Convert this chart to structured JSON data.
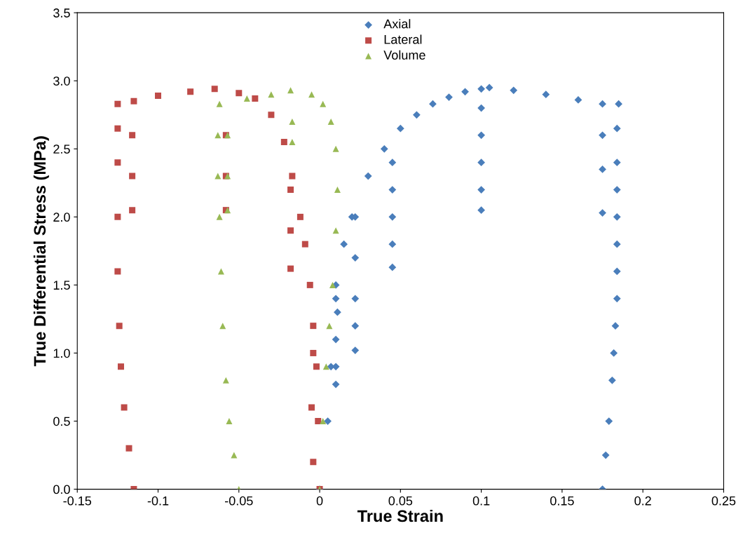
{
  "chart_data": {
    "type": "scatter",
    "xlabel": "True Strain",
    "ylabel": "True Differential Stress (MPa)",
    "xlim": [
      -0.15,
      0.25
    ],
    "ylim": [
      0,
      3.5
    ],
    "xticks": [
      -0.15,
      -0.1,
      -0.05,
      0,
      0.05,
      0.1,
      0.15,
      0.2,
      0.25
    ],
    "yticks": [
      {
        "value": 0,
        "label": "0.0"
      },
      {
        "value": 0.5,
        "label": "0.5"
      },
      {
        "value": 1,
        "label": "1.0"
      },
      {
        "value": 1.5,
        "label": "1.5"
      },
      {
        "value": 2,
        "label": "2.0"
      },
      {
        "value": 2.5,
        "label": "2.5"
      },
      {
        "value": 3,
        "label": "3.0"
      },
      {
        "value": 3.5,
        "label": "3.5"
      }
    ],
    "grid": false,
    "legend": "top",
    "series": [
      {
        "name": "Axial",
        "color": "#4a7ebb",
        "marker": "diamond",
        "x": [
          0,
          0.005,
          0.007,
          0.011,
          0.01,
          0.015,
          0.02,
          0.03,
          0.04,
          0.05,
          0.06,
          0.07,
          0.08,
          0.09,
          0.1,
          0.105,
          0.12,
          0.14,
          0.16,
          0.175,
          0.185,
          0.01,
          0.01,
          0.01,
          0.01,
          0.022,
          0.022,
          0.022,
          0.022,
          0.022,
          0.045,
          0.045,
          0.045,
          0.045,
          0.045,
          0.1,
          0.1,
          0.1,
          0.1,
          0.1,
          0.175,
          0.175,
          0.175,
          0.184,
          0.184,
          0.184,
          0.184,
          0.184,
          0.184,
          0.184,
          0.183,
          0.182,
          0.181,
          0.179,
          0.177,
          0.175
        ],
        "values": [
          0,
          0.5,
          0.9,
          1.3,
          1.5,
          1.8,
          2.0,
          2.3,
          2.5,
          2.65,
          2.75,
          2.83,
          2.88,
          2.92,
          2.94,
          2.95,
          2.93,
          2.9,
          2.86,
          2.83,
          2.83,
          1.4,
          1.1,
          0.9,
          0.77,
          2.0,
          1.7,
          1.4,
          1.2,
          1.02,
          2.4,
          2.2,
          2.0,
          1.8,
          1.63,
          2.8,
          2.6,
          2.4,
          2.2,
          2.05,
          2.6,
          2.35,
          2.03,
          2.65,
          2.4,
          2.2,
          2.0,
          1.8,
          1.6,
          1.4,
          1.2,
          1.0,
          0.8,
          0.5,
          0.25,
          0
        ]
      },
      {
        "name": "Lateral",
        "color": "#be4b48",
        "marker": "square",
        "x": [
          0,
          -0.001,
          -0.002,
          -0.004,
          -0.006,
          -0.009,
          -0.012,
          -0.017,
          -0.022,
          -0.03,
          -0.04,
          -0.05,
          -0.065,
          -0.08,
          -0.1,
          -0.115,
          -0.125,
          -0.004,
          -0.005,
          -0.004,
          -0.018,
          -0.018,
          -0.018,
          -0.058,
          -0.058,
          -0.058,
          -0.116,
          -0.116,
          -0.116,
          -0.125,
          -0.125,
          -0.125,
          -0.125,
          -0.124,
          -0.123,
          -0.121,
          -0.118,
          -0.115
        ],
        "values": [
          0,
          0.5,
          0.9,
          1.2,
          1.5,
          1.8,
          2.0,
          2.3,
          2.55,
          2.75,
          2.87,
          2.91,
          2.94,
          2.92,
          2.89,
          2.85,
          2.83,
          1.0,
          0.6,
          0.2,
          2.2,
          1.9,
          1.62,
          2.6,
          2.3,
          2.05,
          2.6,
          2.3,
          2.05,
          2.65,
          2.4,
          2.0,
          1.6,
          1.2,
          0.9,
          0.6,
          0.3,
          0
        ]
      },
      {
        "name": "Volume",
        "color": "#98b954",
        "marker": "triangle",
        "x": [
          0,
          0.002,
          0.004,
          0.006,
          0.008,
          0.01,
          0.011,
          0.01,
          0.007,
          0.002,
          -0.005,
          -0.018,
          -0.03,
          -0.045,
          -0.062,
          -0.017,
          -0.017,
          -0.057,
          -0.057,
          -0.057,
          -0.063,
          -0.063,
          -0.062,
          -0.061,
          -0.06,
          -0.058,
          -0.056,
          -0.053,
          -0.05
        ],
        "values": [
          0,
          0.5,
          0.9,
          1.2,
          1.5,
          1.9,
          2.2,
          2.5,
          2.7,
          2.83,
          2.9,
          2.93,
          2.9,
          2.87,
          2.83,
          2.7,
          2.55,
          2.6,
          2.3,
          2.05,
          2.6,
          2.3,
          2.0,
          1.6,
          1.2,
          0.8,
          0.5,
          0.25,
          0
        ]
      }
    ]
  }
}
